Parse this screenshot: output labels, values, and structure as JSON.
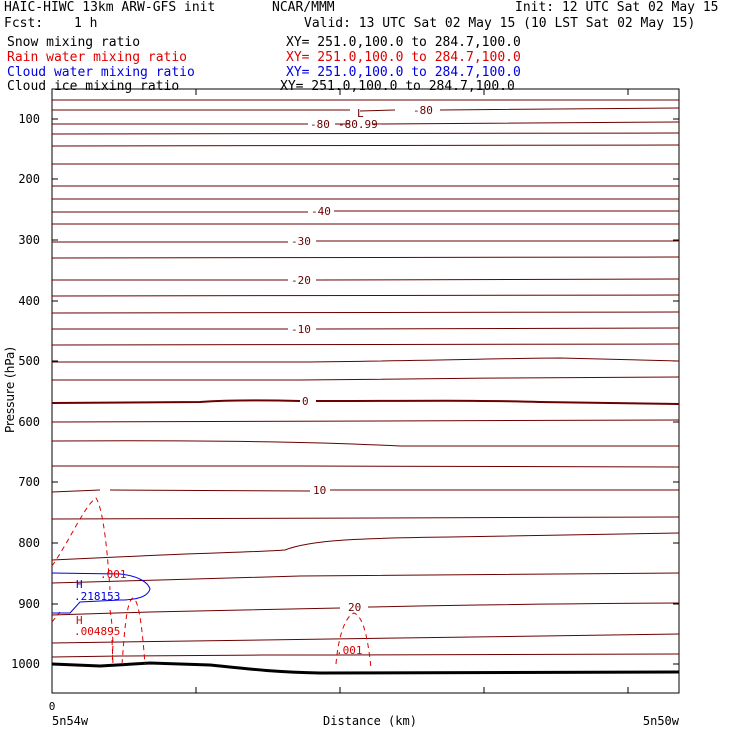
{
  "header": {
    "title_left": "HAIC-HIWC 13km ARW-GFS init",
    "title_center": "NCAR/MMM",
    "init": "Init: 12 UTC Sat 02 May 15",
    "fcst_label": "Fcst:",
    "fcst_value": "1 h",
    "valid": "Valid: 13 UTC Sat 02 May 15 (10 LST Sat 02 May 15)"
  },
  "fields": [
    {
      "label": "Snow mixing ratio",
      "xy": "XY= 251.0,100.0 to 284.7,100.0",
      "color": "#000000"
    },
    {
      "label": "Rain water mixing ratio",
      "xy": "XY= 251.0,100.0 to 284.7,100.0",
      "color": "#e00000"
    },
    {
      "label": "Cloud water mixing ratio",
      "xy": "XY= 251.0,100.0 to 284.7,100.0",
      "color": "#0000e0"
    },
    {
      "label": "Cloud ice mixing ratio",
      "xy": "XY= 251.0,100.0 to 284.7,100.0",
      "color": "#000000"
    }
  ],
  "axes": {
    "ylabel": "Pressure (hPa)",
    "xlabel": "Distance (km)",
    "x_origin_label": "0",
    "x_left_label": "5n54w",
    "x_right_label": "5n50w",
    "y_ticks": [
      "100",
      "200",
      "300",
      "400",
      "500",
      "600",
      "700",
      "800",
      "900",
      "1000"
    ]
  },
  "temperature_labels": [
    "-80",
    "-80.99",
    "L",
    "-80",
    "-40",
    "-30",
    "-20",
    "-10",
    "0",
    "10",
    "20"
  ],
  "rain_labels": [
    ".001",
    "H",
    ".004895",
    ".001"
  ],
  "cloud_labels": [
    "H",
    ".218153"
  ],
  "colors": {
    "temperature": "#6b0000",
    "rain": "#e00000",
    "cloud": "#0000e0",
    "terrain": "#000000"
  },
  "chart_data": {
    "type": "contour",
    "xlabel": "Distance (km)",
    "ylabel": "Pressure (hPa)",
    "ylim": [
      1050,
      50
    ],
    "y_ticks": [
      100,
      200,
      300,
      400,
      500,
      600,
      700,
      800,
      900,
      1000
    ],
    "temperature_contour_levels": [
      -80,
      -40,
      -30,
      -20,
      -10,
      0,
      10,
      20
    ],
    "temperature_min": -80.99,
    "rain_max": 0.004895,
    "cloud_water_max": 0.218153
  }
}
